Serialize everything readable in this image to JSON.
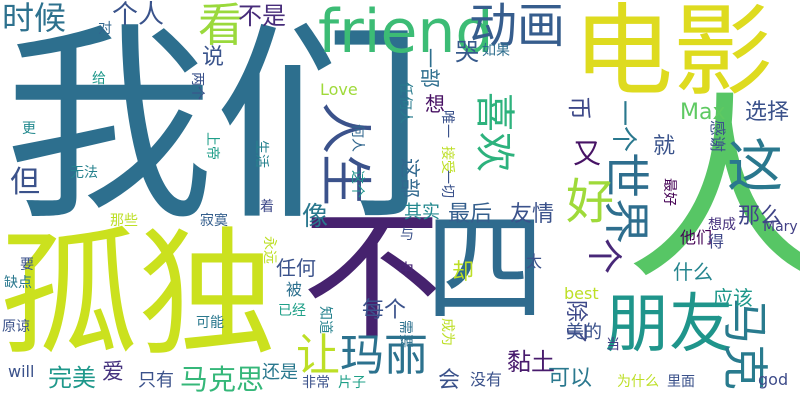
{
  "cloud": {
    "words": [
      {
        "text": "我们",
        "color": "#2d6f8e",
        "size": "xxl"
      },
      {
        "text": "电影",
        "color": "#dedb1f",
        "size": "xl"
      },
      {
        "text": "孤独",
        "color": "#cbe11e",
        "size": "xl"
      },
      {
        "text": "人",
        "color": "#57c665",
        "size": "xl"
      },
      {
        "text": "不",
        "color": "#46226e",
        "size": "xl"
      },
      {
        "text": "四",
        "color": "#2f6b8e",
        "size": "xl"
      },
      {
        "text": "friend",
        "color": "#3cbc75",
        "size": "l"
      },
      {
        "text": "朋友",
        "color": "#1f958b",
        "size": "l"
      },
      {
        "text": "动画",
        "color": "#365d8d",
        "size": "m"
      },
      {
        "text": "人生",
        "color": "#3b528b",
        "size": "m"
      },
      {
        "text": "看",
        "color": "#9ad93c",
        "size": "m"
      },
      {
        "text": "时候",
        "color": "#2d718e",
        "size": "s"
      },
      {
        "text": "个人",
        "color": "#3a538b",
        "size": "s"
      },
      {
        "text": "不是",
        "color": "#472c7a",
        "size": "s"
      },
      {
        "text": "喜欢",
        "color": "#2db27d",
        "size": "m"
      },
      {
        "text": "世界",
        "color": "#2e6e8e",
        "size": "m"
      },
      {
        "text": "这",
        "color": "#2a788e",
        "size": "m"
      },
      {
        "text": "好",
        "color": "#9fda3a",
        "size": "m"
      },
      {
        "text": "让",
        "color": "#bddf26",
        "size": "m"
      },
      {
        "text": "玛丽",
        "color": "#2c728e",
        "size": "m"
      },
      {
        "text": "马克",
        "color": "#297b8e",
        "size": "m"
      },
      {
        "text": "马克思",
        "color": "#35b779",
        "size": "s"
      },
      {
        "text": "个",
        "color": "#482878",
        "size": "s"
      },
      {
        "text": "又",
        "color": "#471365",
        "size": "s"
      },
      {
        "text": "就",
        "color": "#3a538b",
        "size": "xs"
      },
      {
        "text": "一个",
        "color": "#2a788e",
        "size": "s"
      },
      {
        "text": "Max",
        "color": "#5ec962",
        "size": "xs"
      },
      {
        "text": "选择",
        "color": "#3b528b",
        "size": "xs"
      },
      {
        "text": "币",
        "color": "#3e4989",
        "size": "xs"
      },
      {
        "text": "感谢",
        "color": "#3b528b",
        "size": "xxs"
      },
      {
        "text": "最好",
        "color": "#440154",
        "size": "xxs"
      },
      {
        "text": "想成",
        "color": "#46317e",
        "size": "xxs"
      },
      {
        "text": "他们",
        "color": "#440154",
        "size": "xxs"
      },
      {
        "text": "得",
        "color": "#3f4788",
        "size": "xxs"
      },
      {
        "text": "Mary",
        "color": "#424086",
        "size": "xxs"
      },
      {
        "text": "那么",
        "color": "#404588",
        "size": "s"
      },
      {
        "text": "什么",
        "color": "#25858e",
        "size": "xs"
      },
      {
        "text": "应该",
        "color": "#1f988b",
        "size": "xs"
      },
      {
        "text": "为什么",
        "color": "#bddf26",
        "size": "xxs"
      },
      {
        "text": "里面",
        "color": "#3b528b",
        "size": "xxs"
      },
      {
        "text": "god",
        "color": "#3e4c8a",
        "size": "xxs"
      },
      {
        "text": "当",
        "color": "#433e85",
        "size": "xxs"
      },
      {
        "text": "对",
        "color": "#31668e",
        "size": "xxs"
      },
      {
        "text": "给",
        "color": "#1f988b",
        "size": "xxs"
      },
      {
        "text": "两个",
        "color": "#3b528b",
        "size": "xxs"
      },
      {
        "text": "更",
        "color": "#23898e",
        "size": "xxs"
      },
      {
        "text": "无法",
        "color": "#26828e",
        "size": "xxs"
      },
      {
        "text": "那些",
        "color": "#bddf26",
        "size": "xxs"
      },
      {
        "text": "寂寞",
        "color": "#355f8d",
        "size": "xxs"
      },
      {
        "text": "但",
        "color": "#3b528b",
        "size": "s"
      },
      {
        "text": "上帝",
        "color": "#1f9e89",
        "size": "xxs"
      },
      {
        "text": "生活",
        "color": "#26828e",
        "size": "xxs"
      },
      {
        "text": "说",
        "color": "#3a548c",
        "size": "s"
      },
      {
        "text": "一部",
        "color": "#2e6e8e",
        "size": "xs"
      },
      {
        "text": "哭",
        "color": "#375a8c",
        "size": "s"
      },
      {
        "text": "如果",
        "color": "#2e6e8e",
        "size": "xxs"
      },
      {
        "text": "Love",
        "color": "#9fda3a",
        "size": "xs"
      },
      {
        "text": "任何人",
        "color": "#297b8e",
        "size": "xxs"
      },
      {
        "text": "何人",
        "color": "#31678e",
        "size": "xxs"
      },
      {
        "text": "想",
        "color": "#471063",
        "size": "xs"
      },
      {
        "text": "唯一",
        "color": "#3b528b",
        "size": "xxs"
      },
      {
        "text": "接受",
        "color": "#bddf26",
        "size": "xxs"
      },
      {
        "text": "一切",
        "color": "#3b528b",
        "size": "xxs"
      },
      {
        "text": "这个",
        "color": "#1f948c",
        "size": "xxs"
      },
      {
        "text": "这部",
        "color": "#31688e",
        "size": "s"
      },
      {
        "text": "其实",
        "color": "#23888e",
        "size": "xs"
      },
      {
        "text": "最后",
        "color": "#355f8d",
        "size": "s"
      },
      {
        "text": "友情",
        "color": "#3b528b",
        "size": "s"
      },
      {
        "text": "像",
        "color": "#2a788e",
        "size": "s"
      },
      {
        "text": "着",
        "color": "#3e4989",
        "size": "xxs"
      },
      {
        "text": "与",
        "color": "#3b528b",
        "size": "xxs"
      },
      {
        "text": "永远",
        "color": "#bddf26",
        "size": "xxs"
      },
      {
        "text": "要",
        "color": "#3b528b",
        "size": "xxs"
      },
      {
        "text": "缺点",
        "color": "#2a788e",
        "size": "xxs"
      },
      {
        "text": "任何",
        "color": "#3b528b",
        "size": "s"
      },
      {
        "text": "中",
        "color": "#482475",
        "size": "xs"
      },
      {
        "text": "却",
        "color": "#bddf26",
        "size": "s"
      },
      {
        "text": "太",
        "color": "#3b528b",
        "size": "xs"
      },
      {
        "text": "被",
        "color": "#2d708e",
        "size": "xs"
      },
      {
        "text": "best",
        "color": "#bddf26",
        "size": "xs"
      },
      {
        "text": "除了",
        "color": "#3e4989",
        "size": "s"
      },
      {
        "text": "已经",
        "color": "#1fa088",
        "size": "xxs"
      },
      {
        "text": "知道",
        "color": "#26828e",
        "size": "xxs"
      },
      {
        "text": "每个",
        "color": "#3b528b",
        "size": "s"
      },
      {
        "text": "需要",
        "color": "#2d718e",
        "size": "xxs"
      },
      {
        "text": "美的",
        "color": "#3b528b",
        "size": "xs"
      },
      {
        "text": "原谅",
        "color": "#3b528b",
        "size": "xxs"
      },
      {
        "text": "可能",
        "color": "#2a788e",
        "size": "xxs"
      },
      {
        "text": "成为",
        "color": "#bddf26",
        "size": "xxs"
      },
      {
        "text": "will",
        "color": "#3b528b",
        "size": "xxs"
      },
      {
        "text": "完美",
        "color": "#1f988b",
        "size": "s"
      },
      {
        "text": "爱",
        "color": "#46337f",
        "size": "xs"
      },
      {
        "text": "只有",
        "color": "#3b528b",
        "size": "xs"
      },
      {
        "text": "还是",
        "color": "#2a788e",
        "size": "xs"
      },
      {
        "text": "非常",
        "color": "#3b528b",
        "size": "xxs"
      },
      {
        "text": "片子",
        "color": "#1fa088",
        "size": "xxs"
      },
      {
        "text": "会",
        "color": "#3b528b",
        "size": "s"
      },
      {
        "text": "没有",
        "color": "#3b528b",
        "size": "xs"
      },
      {
        "text": "黏土",
        "color": "#481b6d",
        "size": "s"
      },
      {
        "text": "可以",
        "color": "#2a788e",
        "size": "s"
      }
    ]
  }
}
